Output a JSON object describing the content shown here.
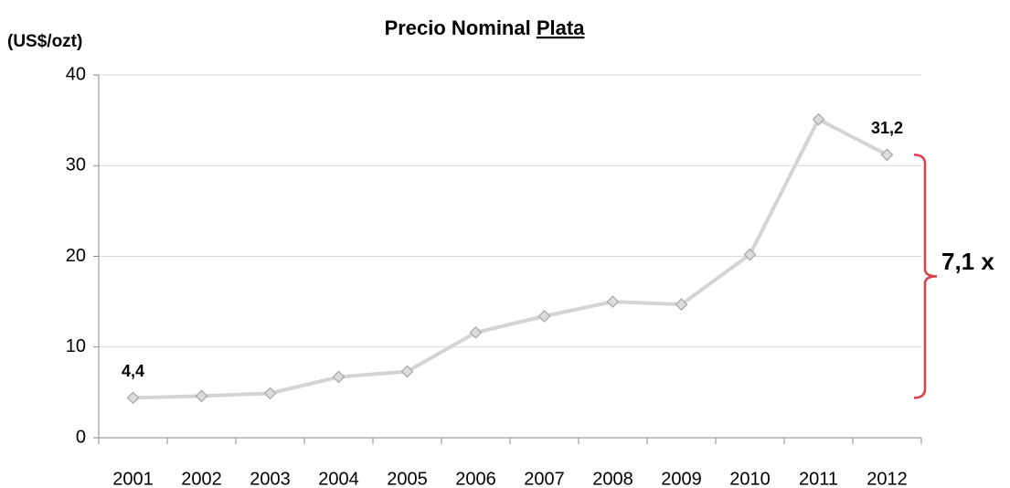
{
  "chart_data": {
    "type": "line",
    "title": "Precio Nominal",
    "title_underlined": "Plata",
    "y_label": "(US$/ozt)",
    "annotation": "7,1 x",
    "categories": [
      "2001",
      "2002",
      "2003",
      "2004",
      "2005",
      "2006",
      "2007",
      "2008",
      "2009",
      "2010",
      "2011",
      "2012"
    ],
    "series": [
      {
        "name": "Plata",
        "color": "#d4d4d4",
        "values": [
          4.4,
          4.6,
          4.9,
          6.7,
          7.3,
          11.6,
          13.4,
          15.0,
          14.7,
          20.2,
          35.1,
          31.2
        ],
        "value_labels": [
          "4,4",
          null,
          null,
          null,
          null,
          null,
          null,
          null,
          null,
          null,
          null,
          "31,2"
        ]
      }
    ],
    "ylim": [
      0,
      40
    ],
    "yticks": [
      0,
      10,
      20,
      30,
      40
    ],
    "grid": true,
    "annotation_color": "#d9404a"
  }
}
